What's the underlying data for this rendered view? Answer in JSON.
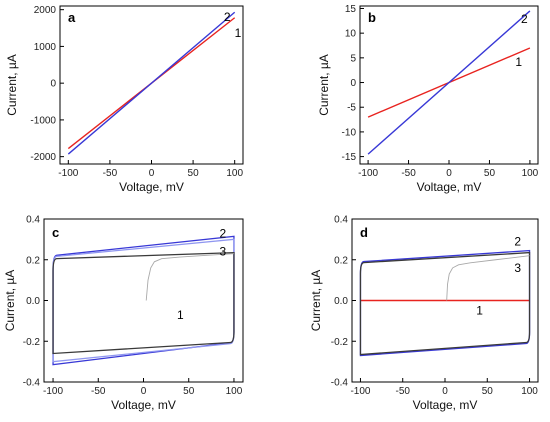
{
  "colors": {
    "red": "#e8231f",
    "blue": "#3838d6",
    "lightblue": "#8f96f0",
    "black": "#3a3a3a",
    "grey": "#a9a9a9"
  },
  "chart_data": [
    {
      "type": "line",
      "panel_label": "a",
      "xlabel": "Voltage, mV",
      "ylabel": "Current, µA",
      "xlim": [
        -110,
        110
      ],
      "ylim": [
        -2200,
        2100
      ],
      "xticks": [
        -100,
        -50,
        0,
        50,
        100
      ],
      "yticks": [
        -2000,
        -1000,
        0,
        1000,
        2000
      ],
      "xtick_labels": [
        "-100",
        "-50",
        "0",
        "50",
        "100"
      ],
      "ytick_labels": [
        "-2000",
        "-1000",
        "0",
        "1000",
        "2000"
      ],
      "series": [
        {
          "name": "1",
          "color": "red",
          "points": [
            [
              -100,
              -1780
            ],
            [
              100,
              1780
            ]
          ],
          "label_at": [
            100,
            1370
          ]
        },
        {
          "name": "2",
          "color": "blue",
          "points": [
            [
              -100,
              -1930
            ],
            [
              100,
              1930
            ]
          ],
          "label_at": [
            87,
            1800
          ]
        }
      ]
    },
    {
      "type": "line",
      "panel_label": "b",
      "xlabel": "Voltage, mV",
      "ylabel": "Current, µA",
      "xlim": [
        -110,
        110
      ],
      "ylim": [
        -16.5,
        15.5
      ],
      "xticks": [
        -100,
        -50,
        0,
        50,
        100
      ],
      "yticks": [
        -15,
        -10,
        -5,
        0,
        5,
        10,
        15
      ],
      "xtick_labels": [
        "-100",
        "-50",
        "0",
        "50",
        "100"
      ],
      "ytick_labels": [
        "-15",
        "-10",
        "-5",
        "0",
        "5",
        "10",
        "15"
      ],
      "series": [
        {
          "name": "1",
          "color": "red",
          "points": [
            [
              -100,
              -7
            ],
            [
              100,
              7
            ]
          ],
          "label_at": [
            82,
            4.2
          ]
        },
        {
          "name": "2",
          "color": "blue",
          "points": [
            [
              -100,
              -14.5
            ],
            [
              100,
              14.5
            ]
          ],
          "label_at": [
            89,
            12.9
          ]
        }
      ]
    },
    {
      "type": "line",
      "panel_label": "c",
      "xlabel": "Voltage, mV",
      "ylabel": "Current, µA",
      "xlim": [
        -110,
        110
      ],
      "ylim": [
        -0.4,
        0.4
      ],
      "xticks": [
        -100,
        -50,
        0,
        50,
        100
      ],
      "yticks": [
        -0.4,
        -0.2,
        0.0,
        0.2,
        0.4
      ],
      "xtick_labels": [
        "-100",
        "-50",
        "0",
        "50",
        "100"
      ],
      "ytick_labels": [
        "-0.4",
        "-0.2",
        "0.0",
        "0.2",
        "0.4"
      ],
      "series": [
        {
          "name": "1",
          "kind": "loop",
          "color": "blue",
          "x_min": -100,
          "x_max": 100,
          "upper": [
            0.22,
            0.315
          ],
          "lower": [
            -0.315,
            -0.205
          ],
          "label_at": [
            37,
            -0.07
          ]
        },
        {
          "name": "2",
          "kind": "loop",
          "color": "lightblue",
          "x_min": -100,
          "x_max": 100,
          "upper": [
            0.215,
            0.3
          ],
          "lower": [
            -0.3,
            -0.21
          ],
          "label_at": [
            84,
            0.33
          ]
        },
        {
          "name": "3",
          "kind": "loop",
          "color": "black",
          "x_min": -100,
          "x_max": 100,
          "upper": [
            0.205,
            0.235
          ],
          "lower": [
            -0.26,
            -0.205
          ],
          "label_at": [
            84,
            0.24
          ]
        },
        {
          "name": "",
          "kind": "startup",
          "color": "grey",
          "points": [
            [
              3,
              0.0
            ],
            [
              5,
              0.1
            ],
            [
              8,
              0.16
            ],
            [
              12,
              0.19
            ],
            [
              20,
              0.205
            ],
            [
              40,
              0.213
            ],
            [
              70,
              0.222
            ],
            [
              100,
              0.23
            ]
          ]
        }
      ]
    },
    {
      "type": "line",
      "panel_label": "d",
      "xlabel": "Voltage, mV",
      "ylabel": "Current, µA",
      "xlim": [
        -110,
        110
      ],
      "ylim": [
        -0.4,
        0.4
      ],
      "xticks": [
        -100,
        -50,
        0,
        50,
        100
      ],
      "yticks": [
        -0.4,
        -0.2,
        0.0,
        0.2,
        0.4
      ],
      "xtick_labels": [
        "-100",
        "-50",
        "0",
        "50",
        "100"
      ],
      "ytick_labels": [
        "-0.4",
        "-0.2",
        "0.0",
        "0.2",
        "0.4"
      ],
      "series": [
        {
          "name": "1",
          "kind": "line",
          "color": "red",
          "points": [
            [
              -100,
              0.0
            ],
            [
              100,
              0.0
            ]
          ],
          "label_at": [
            37,
            -0.05
          ]
        },
        {
          "name": "2",
          "kind": "loop",
          "color": "blue",
          "x_min": -100,
          "x_max": 100,
          "upper": [
            0.19,
            0.245
          ],
          "lower": [
            -0.27,
            -0.21
          ],
          "label_at": [
            82,
            0.29
          ]
        },
        {
          "name": "3",
          "kind": "loop",
          "color": "black",
          "x_min": -100,
          "x_max": 100,
          "upper": [
            0.185,
            0.235
          ],
          "lower": [
            -0.265,
            -0.205
          ],
          "label_at": [
            82,
            0.16
          ]
        },
        {
          "name": "",
          "kind": "startup",
          "color": "grey",
          "points": [
            [
              2,
              0.0
            ],
            [
              3,
              0.08
            ],
            [
              5,
              0.13
            ],
            [
              9,
              0.16
            ],
            [
              16,
              0.175
            ],
            [
              30,
              0.185
            ],
            [
              60,
              0.2
            ],
            [
              100,
              0.22
            ]
          ]
        }
      ]
    }
  ]
}
